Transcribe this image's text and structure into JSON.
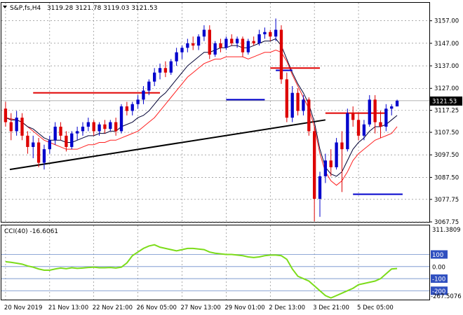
{
  "header": {
    "symbol_line": "S&P,fs,H4",
    "ohlc": "3119.28 3121.78 3119.03 3121.53"
  },
  "price_panel": {
    "y_ticks": [
      "3157.00",
      "3147.00",
      "3137.00",
      "3127.00",
      "3117.25",
      "3107.50",
      "3097.50",
      "3087.50",
      "3077.75",
      "3067.75"
    ],
    "current_price_label": "3121.53"
  },
  "cci_panel": {
    "title": "CCI(40) -16.6061",
    "top_label": "311.3809",
    "bottom_label": "-267.5076",
    "levels": [
      "100",
      "0.00",
      "-100",
      "-200"
    ]
  },
  "x_ticks": [
    "20 Nov 2019",
    "21 Nov 13:00",
    "22 Nov 21:00",
    "26 Nov 05:00",
    "27 Nov 13:00",
    "29 Nov 01:00",
    "2 Dec 13:00",
    "3 Dec 21:00",
    "5 Dec 05:00"
  ],
  "colors": {
    "bull": "#0000cc",
    "bear": "#dd0000",
    "cci_line": "#7cdc1a",
    "trendline": "#000000",
    "grid": "#777777"
  },
  "chart_data": {
    "type": "candlestick",
    "price_ylim": [
      3067.75,
      3160
    ],
    "cci_ylim": [
      -267.5076,
      311.3809
    ],
    "candles": [
      [
        3118,
        3121,
        3110,
        3112
      ],
      [
        3112,
        3116,
        3104,
        3108
      ],
      [
        3108,
        3117,
        3106,
        3114
      ],
      [
        3114,
        3116,
        3104,
        3106
      ],
      [
        3106,
        3108,
        3098,
        3101
      ],
      [
        3101,
        3106,
        3096,
        3103
      ],
      [
        3103,
        3105,
        3092,
        3094
      ],
      [
        3094,
        3102,
        3091,
        3100
      ],
      [
        3100,
        3106,
        3098,
        3104
      ],
      [
        3104,
        3112,
        3102,
        3110
      ],
      [
        3110,
        3112,
        3104,
        3106
      ],
      [
        3106,
        3108,
        3099,
        3101
      ],
      [
        3101,
        3108,
        3100,
        3107
      ],
      [
        3107,
        3110,
        3104,
        3108
      ],
      [
        3108,
        3112,
        3106,
        3110
      ],
      [
        3110,
        3114,
        3108,
        3112
      ],
      [
        3112,
        3113,
        3106,
        3108
      ],
      [
        3108,
        3112,
        3106,
        3111
      ],
      [
        3111,
        3113,
        3107,
        3109
      ],
      [
        3109,
        3113,
        3108,
        3112
      ],
      [
        3112,
        3114,
        3106,
        3108
      ],
      [
        3108,
        3120,
        3107,
        3119
      ],
      [
        3119,
        3121,
        3115,
        3117
      ],
      [
        3117,
        3121,
        3115,
        3120
      ],
      [
        3120,
        3124,
        3118,
        3122
      ],
      [
        3122,
        3128,
        3120,
        3126
      ],
      [
        3126,
        3131,
        3124,
        3130
      ],
      [
        3130,
        3136,
        3128,
        3134
      ],
      [
        3134,
        3138,
        3131,
        3136
      ],
      [
        3136,
        3139,
        3132,
        3134
      ],
      [
        3134,
        3140,
        3133,
        3139
      ],
      [
        3139,
        3145,
        3137,
        3143
      ],
      [
        3143,
        3146,
        3140,
        3145
      ],
      [
        3145,
        3149,
        3143,
        3147
      ],
      [
        3147,
        3150,
        3144,
        3146
      ],
      [
        3146,
        3151,
        3144,
        3150
      ],
      [
        3150,
        3155,
        3148,
        3153
      ],
      [
        3153,
        3155,
        3140,
        3142
      ],
      [
        3142,
        3148,
        3141,
        3147
      ],
      [
        3147,
        3149,
        3143,
        3145
      ],
      [
        3145,
        3150,
        3144,
        3149
      ],
      [
        3149,
        3151,
        3146,
        3147
      ],
      [
        3147,
        3150,
        3145,
        3149
      ],
      [
        3149,
        3150,
        3141,
        3143
      ],
      [
        3143,
        3149,
        3142,
        3148
      ],
      [
        3148,
        3150,
        3146,
        3147
      ],
      [
        3147,
        3153,
        3146,
        3151
      ],
      [
        3151,
        3154,
        3149,
        3152
      ],
      [
        3152,
        3153,
        3148,
        3150
      ],
      [
        3150,
        3158,
        3148,
        3153
      ],
      [
        3153,
        3155,
        3129,
        3131
      ],
      [
        3131,
        3134,
        3112,
        3114
      ],
      [
        3114,
        3128,
        3112,
        3125
      ],
      [
        3125,
        3127,
        3115,
        3117
      ],
      [
        3117,
        3124,
        3115,
        3122
      ],
      [
        3122,
        3123,
        3106,
        3108
      ],
      [
        3108,
        3110,
        3068,
        3078
      ],
      [
        3078,
        3090,
        3070,
        3088
      ],
      [
        3088,
        3098,
        3085,
        3095
      ],
      [
        3095,
        3100,
        3088,
        3092
      ],
      [
        3092,
        3105,
        3091,
        3103
      ],
      [
        3103,
        3108,
        3081,
        3100
      ],
      [
        3100,
        3118,
        3099,
        3116
      ],
      [
        3116,
        3119,
        3110,
        3113
      ],
      [
        3113,
        3116,
        3104,
        3106
      ],
      [
        3106,
        3113,
        3104,
        3111
      ],
      [
        3111,
        3124,
        3110,
        3122
      ],
      [
        3122,
        3124,
        3107,
        3112
      ],
      [
        3112,
        3117,
        3105,
        3110
      ],
      [
        3110,
        3120,
        3108,
        3118
      ],
      [
        3118,
        3120,
        3115,
        3119
      ],
      [
        3119,
        3122,
        3119,
        3121.53
      ]
    ],
    "ma_close": [
      3114,
      3113,
      3113,
      3112,
      3110,
      3109,
      3107,
      3105,
      3104,
      3104,
      3104,
      3103,
      3103,
      3104,
      3105,
      3106,
      3106,
      3107,
      3107,
      3108,
      3108,
      3110,
      3111,
      3112,
      3114,
      3115,
      3117,
      3120,
      3123,
      3125,
      3128,
      3131,
      3134,
      3137,
      3139,
      3141,
      3143,
      3143,
      3144,
      3145,
      3145,
      3146,
      3146,
      3145,
      3145,
      3146,
      3147,
      3148,
      3148,
      3149,
      3146,
      3140,
      3134,
      3129,
      3125,
      3120,
      3112,
      3100,
      3092,
      3089,
      3088,
      3090,
      3095,
      3100,
      3103,
      3105,
      3108,
      3110,
      3110,
      3111,
      3113,
      3115
    ],
    "ma_smooth": [
      3114,
      3113.5,
      3113,
      3112,
      3110,
      3108,
      3106,
      3104,
      3103,
      3102,
      3101,
      3100,
      3100,
      3100,
      3101,
      3102,
      3102,
      3103,
      3103,
      3104,
      3104,
      3105,
      3106,
      3107,
      3108,
      3110,
      3112,
      3114,
      3117,
      3120,
      3123,
      3126,
      3129,
      3132,
      3134,
      3136,
      3138,
      3139,
      3140,
      3140,
      3141,
      3141,
      3141,
      3141,
      3140,
      3141,
      3142,
      3143,
      3143,
      3144,
      3143,
      3139,
      3133,
      3128,
      3123,
      3118,
      3110,
      3098,
      3090,
      3086,
      3084,
      3086,
      3090,
      3095,
      3098,
      3100,
      3102,
      3104,
      3105,
      3106,
      3107,
      3110
    ],
    "upper_band": [
      3121,
      3121,
      3121,
      3121,
      3121,
      3121,
      3121,
      3121,
      3121,
      3121,
      3121,
      3121,
      3121,
      3121,
      3121,
      3121,
      3121,
      3121,
      3121,
      3121,
      3121,
      3121,
      3121,
      3121,
      3121,
      3121,
      3121,
      3121,
      3121,
      3121,
      3121,
      3121,
      3121,
      3121,
      3121,
      3121,
      3121,
      3121,
      3121,
      3121,
      3121,
      3121,
      3121,
      3121,
      3121,
      3121,
      3121,
      3121,
      3121,
      3121,
      3121,
      3121,
      3121,
      3121,
      3121,
      3121,
      3121,
      3121,
      3121,
      3121,
      3121,
      3121,
      3121,
      3121,
      3121,
      3121,
      3121,
      3121,
      3121,
      3121,
      3121,
      3121
    ],
    "red_level_segments": [
      {
        "from": 5,
        "to": 28,
        "value": 3125
      },
      {
        "from": 48,
        "to": 57,
        "value": 3136
      },
      {
        "from": 58,
        "to": 69,
        "value": 3116
      }
    ],
    "blue_level_segments": [
      {
        "from": 40,
        "to": 47,
        "value": 3122
      },
      {
        "from": 49,
        "to": 52,
        "value": 3135
      },
      {
        "from": 63,
        "to": 72,
        "value": 3080
      }
    ],
    "cci": [
      40,
      35,
      28,
      20,
      5,
      -5,
      -20,
      -30,
      -30,
      -20,
      -12,
      -18,
      -10,
      -15,
      -12,
      -8,
      -5,
      -10,
      -10,
      -8,
      -12,
      -5,
      30,
      90,
      120,
      150,
      170,
      180,
      160,
      150,
      140,
      130,
      140,
      150,
      150,
      145,
      140,
      120,
      110,
      105,
      100,
      100,
      95,
      90,
      80,
      75,
      80,
      90,
      95,
      95,
      90,
      60,
      -20,
      -80,
      -100,
      -120,
      -160,
      -200,
      -240,
      -260,
      -240,
      -220,
      -200,
      -180,
      -150,
      -140,
      -130,
      -120,
      -100,
      -60,
      -20,
      -16.6
    ]
  }
}
